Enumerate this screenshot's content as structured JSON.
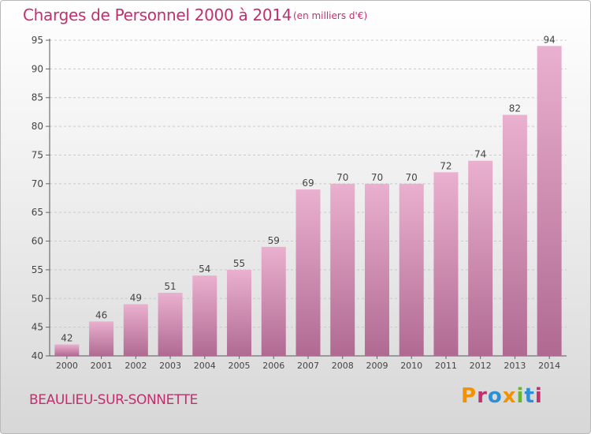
{
  "header": {
    "title": "Charges de Personnel 2000 à 2014",
    "subtitle": "(en milliers d'€)"
  },
  "footer": {
    "commune": "BEAULIEU-SUR-SONNETTE",
    "logo_text": "Proxiti"
  },
  "colors": {
    "title": "#c0306f",
    "bar_top": "#eab0cf",
    "bar_bottom": "#b06a92",
    "logo_letters": [
      "#f39200",
      "#c0306f",
      "#2f8fd5",
      "#f39200",
      "#68b72b",
      "#2f8fd5",
      "#c0306f"
    ]
  },
  "chart_data": {
    "type": "bar",
    "categories": [
      "2000",
      "2001",
      "2002",
      "2003",
      "2004",
      "2005",
      "2006",
      "2007",
      "2008",
      "2009",
      "2010",
      "2011",
      "2012",
      "2013",
      "2014"
    ],
    "values": [
      42,
      46,
      49,
      51,
      54,
      55,
      59,
      69,
      70,
      70,
      70,
      72,
      74,
      82,
      94
    ],
    "title": "Charges de Personnel 2000 à 2014",
    "ylim": [
      40,
      95
    ],
    "yticks": [
      40,
      45,
      50,
      55,
      60,
      65,
      70,
      75,
      80,
      85,
      90,
      95
    ],
    "grid": true,
    "data_labels": true
  }
}
